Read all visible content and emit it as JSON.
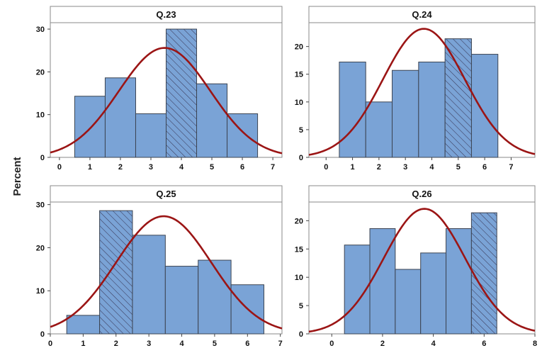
{
  "figure": {
    "ylabel": "Percent",
    "hatch_color": "#3a3a5a",
    "bar_color": "#7aa3d6",
    "bar_edge": "#3c4452",
    "curve_color": "#9b1515",
    "header_color": "#ffffff"
  },
  "chart_data": [
    {
      "type": "bar",
      "title": "Q.23",
      "xticks": [
        "0",
        "1",
        "2",
        "3",
        "4",
        "5",
        "6",
        "7"
      ],
      "xlim": [
        -0.3,
        7.3
      ],
      "yticks": [
        "0",
        "10",
        "20",
        "30"
      ],
      "ylim": [
        0,
        31.5
      ],
      "bin_centers": [
        1,
        2,
        3,
        4,
        5,
        6
      ],
      "values": [
        14.3,
        18.6,
        10.2,
        30.0,
        17.2,
        10.2
      ],
      "hatched": [
        false,
        false,
        false,
        true,
        false,
        false
      ],
      "normal_fit": {
        "mean": 3.45,
        "peak": 25.6,
        "sd": 1.5
      }
    },
    {
      "type": "bar",
      "title": "Q.24",
      "xticks": [
        "0",
        "1",
        "2",
        "3",
        "4",
        "5",
        "6",
        "7"
      ],
      "xlim": [
        -0.65,
        7.9
      ],
      "yticks": [
        "0",
        "5",
        "10",
        "15",
        "20"
      ],
      "ylim": [
        0,
        24.3
      ],
      "bin_centers": [
        1,
        2,
        3,
        4,
        5,
        6
      ],
      "values": [
        17.2,
        10.0,
        15.7,
        17.2,
        21.4,
        18.6
      ],
      "hatched": [
        false,
        false,
        false,
        false,
        true,
        false
      ],
      "normal_fit": {
        "mean": 3.7,
        "peak": 23.2,
        "sd": 1.55
      }
    },
    {
      "type": "bar",
      "title": "Q.25",
      "xticks": [
        "0",
        "1",
        "2",
        "3",
        "4",
        "5",
        "6",
        "7"
      ],
      "xlim": [
        0,
        7.05
      ],
      "yticks": [
        "0",
        "10",
        "20",
        "30"
      ],
      "ylim": [
        0,
        30.6
      ],
      "bin_centers": [
        1,
        2,
        3,
        4,
        5,
        6
      ],
      "values": [
        4.3,
        28.6,
        22.9,
        15.7,
        17.1,
        11.4
      ],
      "hatched": [
        false,
        true,
        false,
        false,
        false,
        false
      ],
      "normal_fit": {
        "mean": 3.45,
        "peak": 27.3,
        "sd": 1.45
      }
    },
    {
      "type": "bar",
      "title": "Q.26",
      "xticks": [
        "0",
        "2",
        "4",
        "6",
        "8"
      ],
      "xlim": [
        -0.9,
        8.0
      ],
      "yticks": [
        "0",
        "5",
        "10",
        "15",
        "20"
      ],
      "ylim": [
        0,
        23.3
      ],
      "bin_centers": [
        1,
        2,
        3,
        4,
        5,
        6
      ],
      "values": [
        15.7,
        18.6,
        11.4,
        14.3,
        18.6,
        21.4
      ],
      "hatched": [
        false,
        false,
        false,
        false,
        false,
        true
      ],
      "normal_fit": {
        "mean": 3.65,
        "peak": 22.1,
        "sd": 1.6
      }
    }
  ]
}
